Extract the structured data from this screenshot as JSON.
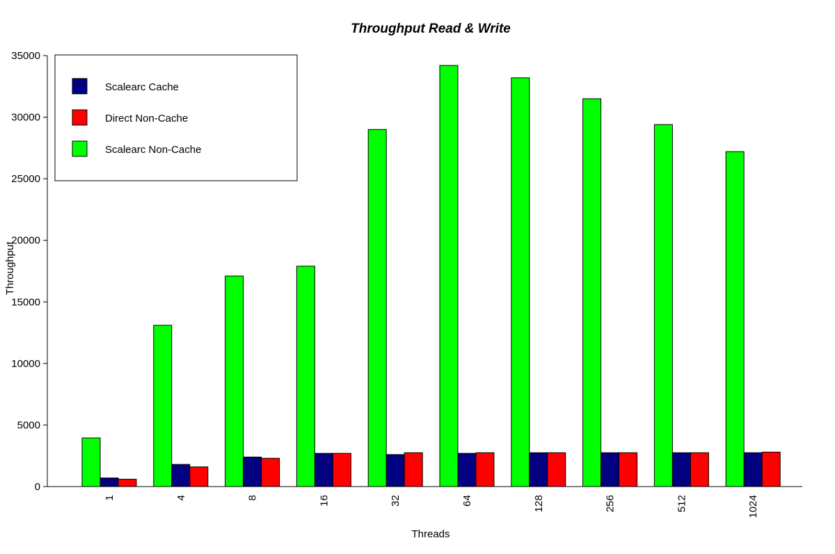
{
  "chart_data": {
    "type": "bar",
    "title": "Throughput Read & Write",
    "xlabel": "Threads",
    "ylabel": "Throughput",
    "ylim": [
      0,
      35000
    ],
    "yticks": [
      "0",
      "5000",
      "10000",
      "15000",
      "20000",
      "25000",
      "30000",
      "35000"
    ],
    "categories": [
      "1",
      "4",
      "8",
      "16",
      "32",
      "64",
      "128",
      "256",
      "512",
      "1024"
    ],
    "bar_order": [
      "Scalearc Non-Cache",
      "Scalearc Cache",
      "Direct Non-Cache"
    ],
    "series": [
      {
        "name": "Scalearc Cache",
        "color": "#000080",
        "values": [
          700,
          1800,
          2400,
          2700,
          2600,
          2700,
          2750,
          2750,
          2750,
          2750
        ]
      },
      {
        "name": "Direct Non-Cache",
        "color": "#ff0000",
        "values": [
          600,
          1600,
          2300,
          2700,
          2750,
          2750,
          2750,
          2750,
          2750,
          2800
        ]
      },
      {
        "name": "Scalearc Non-Cache",
        "color": "#00ff00",
        "values": [
          3950,
          13100,
          17100,
          17900,
          29000,
          34200,
          33200,
          31500,
          29400,
          27200
        ]
      }
    ],
    "legend": {
      "position": "top-left",
      "entries": [
        "Scalearc Cache",
        "Direct Non-Cache",
        "Scalearc Non-Cache"
      ]
    },
    "grid": false
  }
}
